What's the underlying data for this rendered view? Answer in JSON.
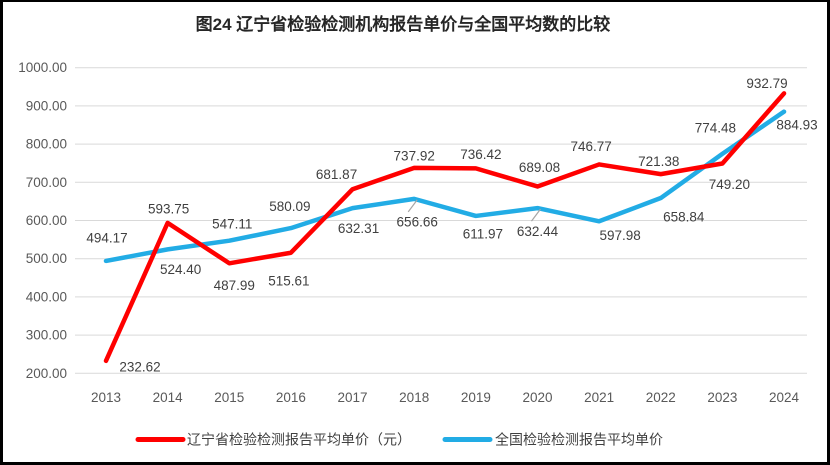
{
  "chart_data": {
    "type": "line",
    "title": "图24 辽宁省检验检测机构报告单价与全国平均数的比较",
    "categories": [
      "2013",
      "2014",
      "2015",
      "2016",
      "2017",
      "2018",
      "2019",
      "2020",
      "2021",
      "2022",
      "2023",
      "2024"
    ],
    "series": [
      {
        "name": "辽宁省检验检测报告平均单价（元）",
        "color": "#FF0000",
        "values": [
          232.62,
          593.75,
          487.99,
          515.61,
          681.87,
          737.92,
          736.42,
          689.08,
          746.77,
          721.38,
          749.2,
          932.79
        ],
        "label_offsets": [
          [
            34,
            6
          ],
          [
            1,
            -14
          ],
          [
            5,
            22
          ],
          [
            -2,
            28
          ],
          [
            -16,
            -15
          ],
          [
            0,
            -12
          ],
          [
            5,
            -14
          ],
          [
            2,
            -19
          ],
          [
            -8,
            -18
          ],
          [
            -2,
            -13
          ],
          [
            7,
            21
          ],
          [
            -17,
            -10
          ]
        ],
        "leader_indices": []
      },
      {
        "name": "全国检验检测报告平均单价",
        "color": "#22ACE5",
        "values": [
          494.17,
          524.4,
          547.11,
          580.09,
          632.31,
          656.66,
          611.97,
          632.44,
          597.98,
          658.84,
          774.48,
          884.93
        ],
        "label_offsets": [
          [
            1,
            -23
          ],
          [
            13,
            20
          ],
          [
            3,
            -17
          ],
          [
            -1,
            -22
          ],
          [
            6,
            20
          ],
          [
            3,
            23
          ],
          [
            7,
            18
          ],
          [
            0,
            23
          ],
          [
            21,
            14
          ],
          [
            23,
            19
          ],
          [
            -7,
            -26
          ],
          [
            13,
            13
          ]
        ],
        "leader_indices": [
          5,
          7
        ]
      }
    ],
    "ylim": [
      200,
      1000
    ],
    "ytick_step": 100,
    "ytick_labels": [
      "200.00",
      "300.00",
      "400.00",
      "500.00",
      "600.00",
      "700.00",
      "800.00",
      "900.00",
      "1000.00"
    ],
    "value_format_decimals": 2,
    "grid": true,
    "legend_position": "bottom"
  },
  "colors": {
    "grid": "#D9D9D9",
    "axis_text": "#595959",
    "data_label_text": "#404040",
    "title_text": "#262626",
    "leader_line": "#A6A6A6",
    "frame": "#000000",
    "background": "#FFFFFF"
  }
}
